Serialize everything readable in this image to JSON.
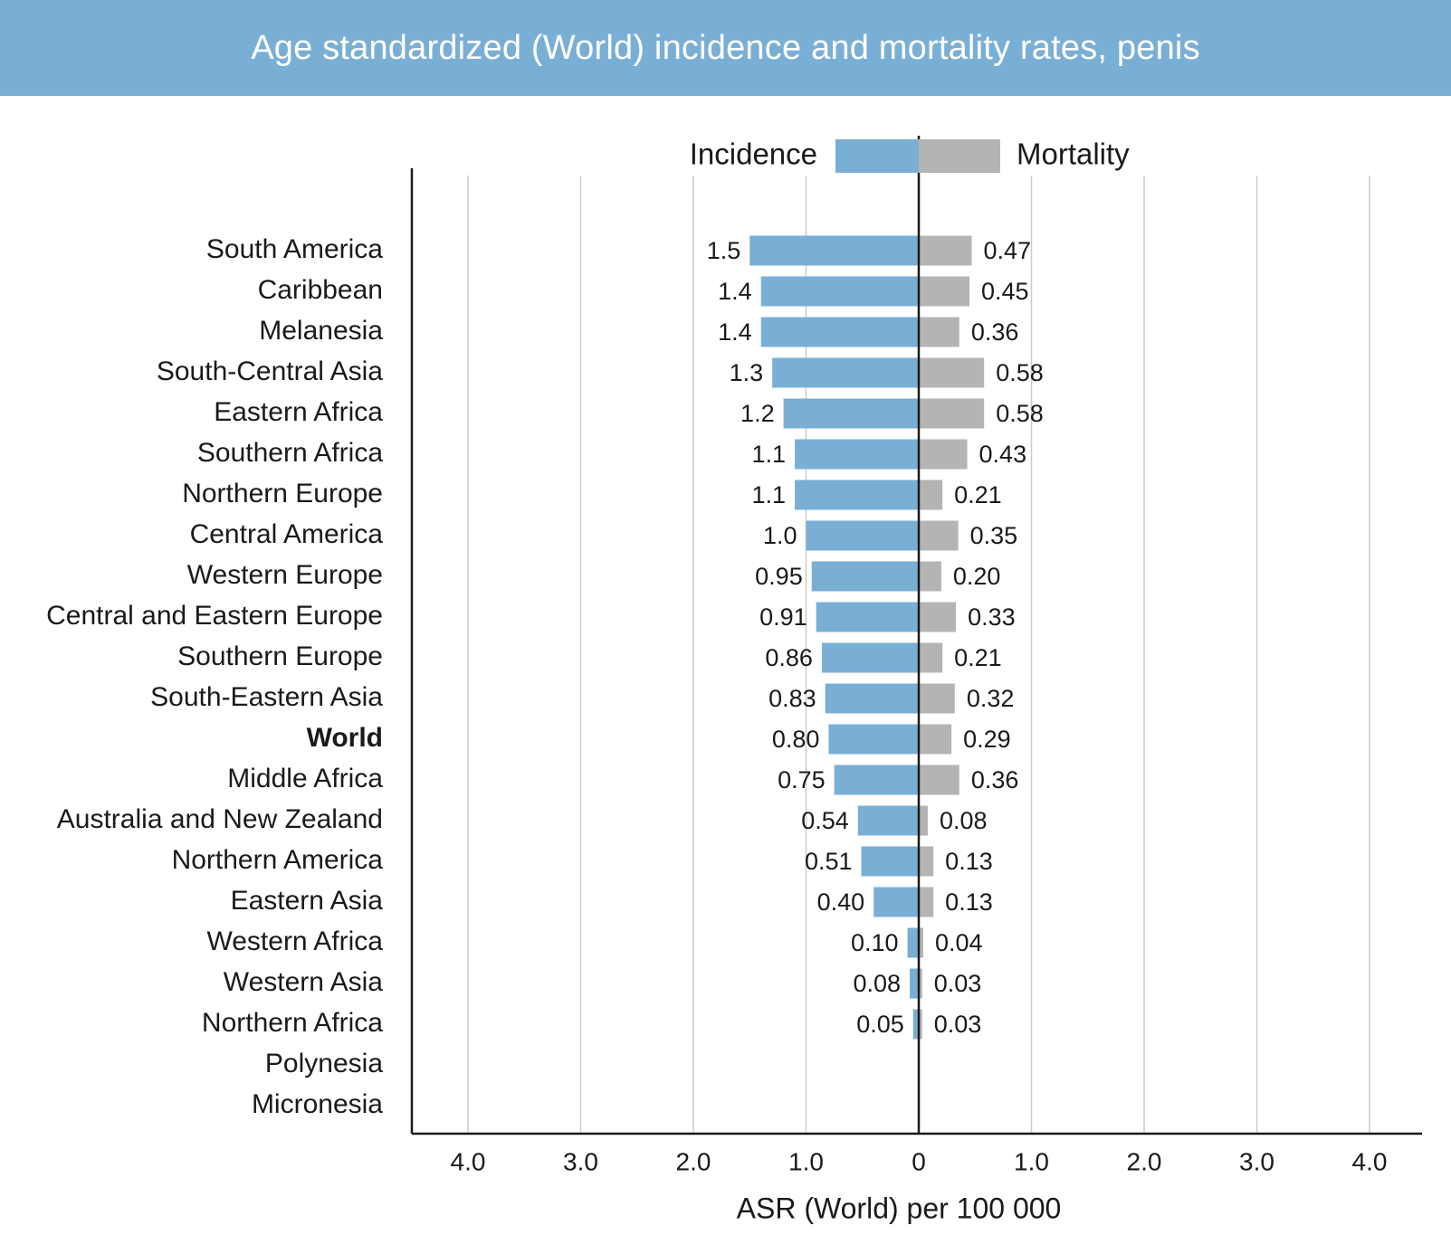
{
  "title": "Age standardized (World) incidence and mortality rates, penis",
  "colors": {
    "header": "#7aafd5",
    "incidence": "#7aafd5",
    "mortality": "#b4b4b4",
    "axis": "#1a1a1a",
    "grid": "#cccccc",
    "text": "#1a1a1a"
  },
  "chart_data": {
    "type": "bar",
    "orientation": "horizontal",
    "layout": "diverging",
    "categories": [
      "South America",
      "Caribbean",
      "Melanesia",
      "South-Central Asia",
      "Eastern Africa",
      "Southern Africa",
      "Northern Europe",
      "Central America",
      "Western Europe",
      "Central and Eastern Europe",
      "Southern Europe",
      "South-Eastern Asia",
      "World",
      "Middle Africa",
      "Australia and New Zealand",
      "Northern America",
      "Eastern Asia",
      "Western Africa",
      "Western Asia",
      "Northern Africa",
      "Polynesia",
      "Micronesia"
    ],
    "highlighted_category": "World",
    "series": [
      {
        "name": "Incidence",
        "side": "left",
        "values": [
          1.5,
          1.4,
          1.4,
          1.3,
          1.2,
          1.1,
          1.1,
          1.0,
          0.95,
          0.91,
          0.86,
          0.83,
          0.8,
          0.75,
          0.54,
          0.51,
          0.4,
          0.1,
          0.08,
          0.05,
          null,
          null
        ],
        "labels": [
          "1.5",
          "1.4",
          "1.4",
          "1.3",
          "1.2",
          "1.1",
          "1.1",
          "1.0",
          "0.95",
          "0.91",
          "0.86",
          "0.83",
          "0.80",
          "0.75",
          "0.54",
          "0.51",
          "0.40",
          "0.10",
          "0.08",
          "0.05",
          "",
          ""
        ]
      },
      {
        "name": "Mortality",
        "side": "right",
        "values": [
          0.47,
          0.45,
          0.36,
          0.58,
          0.58,
          0.43,
          0.21,
          0.35,
          0.2,
          0.33,
          0.21,
          0.32,
          0.29,
          0.36,
          0.08,
          0.13,
          0.13,
          0.04,
          0.03,
          0.03,
          null,
          null
        ],
        "labels": [
          "0.47",
          "0.45",
          "0.36",
          "0.58",
          "0.58",
          "0.43",
          "0.21",
          "0.35",
          "0.20",
          "0.33",
          "0.21",
          "0.32",
          "0.29",
          "0.36",
          "0.08",
          "0.13",
          "0.13",
          "0.04",
          "0.03",
          "0.03",
          "",
          ""
        ]
      }
    ],
    "xlabel": "ASR (World) per 100 000",
    "xlim": [
      -4.0,
      4.0
    ],
    "tick_values": [
      -4,
      -3,
      -2,
      -1,
      0,
      1,
      2,
      3,
      4
    ],
    "tick_labels": [
      "4.0",
      "3.0",
      "2.0",
      "1.0",
      "0",
      "1.0",
      "2.0",
      "3.0",
      "4.0"
    ],
    "legend": [
      "Incidence",
      "Mortality"
    ],
    "legend_position": "top-center",
    "grid": true
  }
}
